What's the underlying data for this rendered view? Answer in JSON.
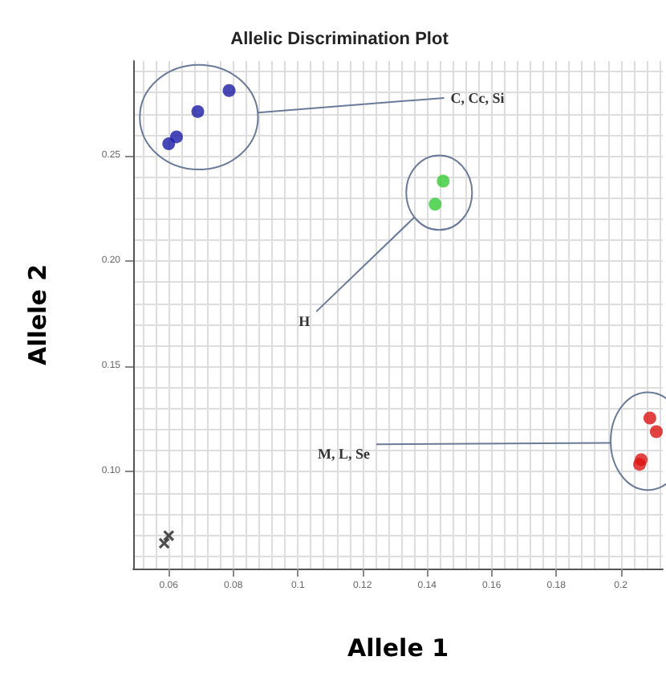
{
  "chart_data": {
    "type": "scatter",
    "title": "Allelic Discrimination Plot",
    "xlabel": "Allele 1",
    "ylabel": "Allele 2",
    "xlim": [
      0.049,
      0.213
    ],
    "ylim": [
      0.054,
      0.295
    ],
    "xticks": [
      0.06,
      0.08,
      0.1,
      0.12,
      0.14,
      0.16,
      0.18,
      0.2
    ],
    "yticks": [
      {
        "value": 0.1,
        "label": "0.10"
      },
      0.15,
      {
        "value": 0.2,
        "label": "0.20"
      },
      0.25
    ],
    "grid": true,
    "marker": "circle",
    "series": [
      {
        "color": "#1a1aa8",
        "x": [
          0.06,
          0.0624,
          0.069,
          0.0787
        ],
        "values": [
          0.2557,
          0.259,
          0.271,
          0.281
        ]
      },
      {
        "color": "#33cc33",
        "x": [
          0.145,
          0.1425
        ],
        "values": [
          0.238,
          0.227
        ]
      },
      {
        "color": "#dd1111",
        "x": [
          0.209,
          0.211,
          0.2063,
          0.2058
        ],
        "values": [
          0.1255,
          0.119,
          0.1057,
          0.1035
        ]
      },
      {
        "color": "#222222",
        "marker": "cross",
        "x": [
          0.0586,
          0.06
        ],
        "values": [
          0.066,
          0.0696
        ]
      }
    ],
    "annotations": [
      "C, Cc, Si",
      "H",
      "M, L, Se"
    ]
  }
}
